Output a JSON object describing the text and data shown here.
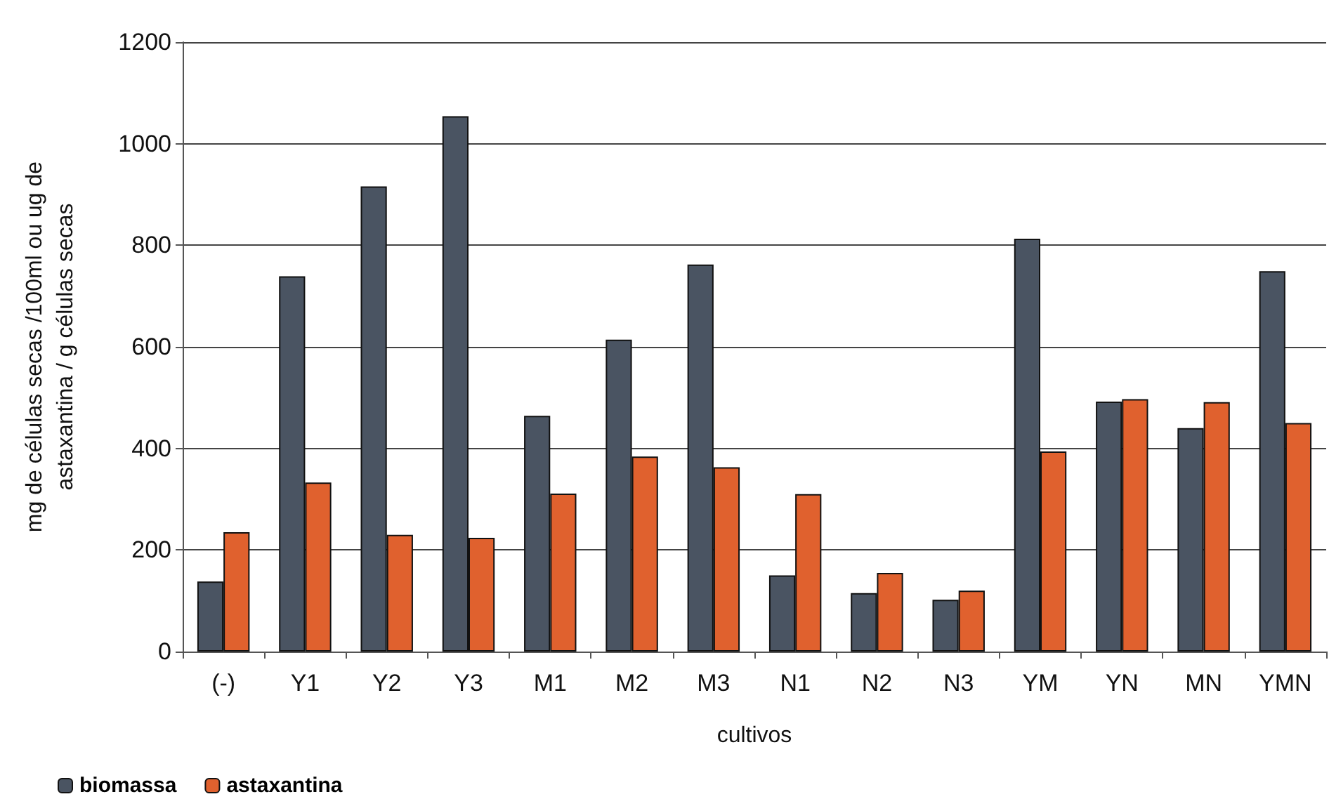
{
  "chart_data": {
    "type": "bar",
    "xlabel": "cultivos",
    "ylabel": "mg de células secas /100ml ou ug de\nastaxantina / g células secas",
    "categories": [
      "(-)",
      "Y1",
      "Y2",
      "Y3",
      "M1",
      "M2",
      "M3",
      "N1",
      "N2",
      "N3",
      "YM",
      "YN",
      "MN",
      "YMN"
    ],
    "series": [
      {
        "name": "biomassa",
        "color": "#4a5462",
        "values": [
          138,
          739,
          916,
          1054,
          464,
          614,
          762,
          150,
          115,
          102,
          813,
          492,
          440,
          749
        ]
      },
      {
        "name": "astaxantina",
        "color": "#e0612e",
        "values": [
          235,
          333,
          230,
          224,
          311,
          384,
          363,
          310,
          155,
          120,
          394,
          497,
          491,
          450
        ]
      }
    ],
    "ylim": [
      0,
      1200
    ],
    "yticks": [
      0,
      200,
      400,
      600,
      800,
      1000,
      1200
    ],
    "grid": "y",
    "legend": "bottom left"
  }
}
